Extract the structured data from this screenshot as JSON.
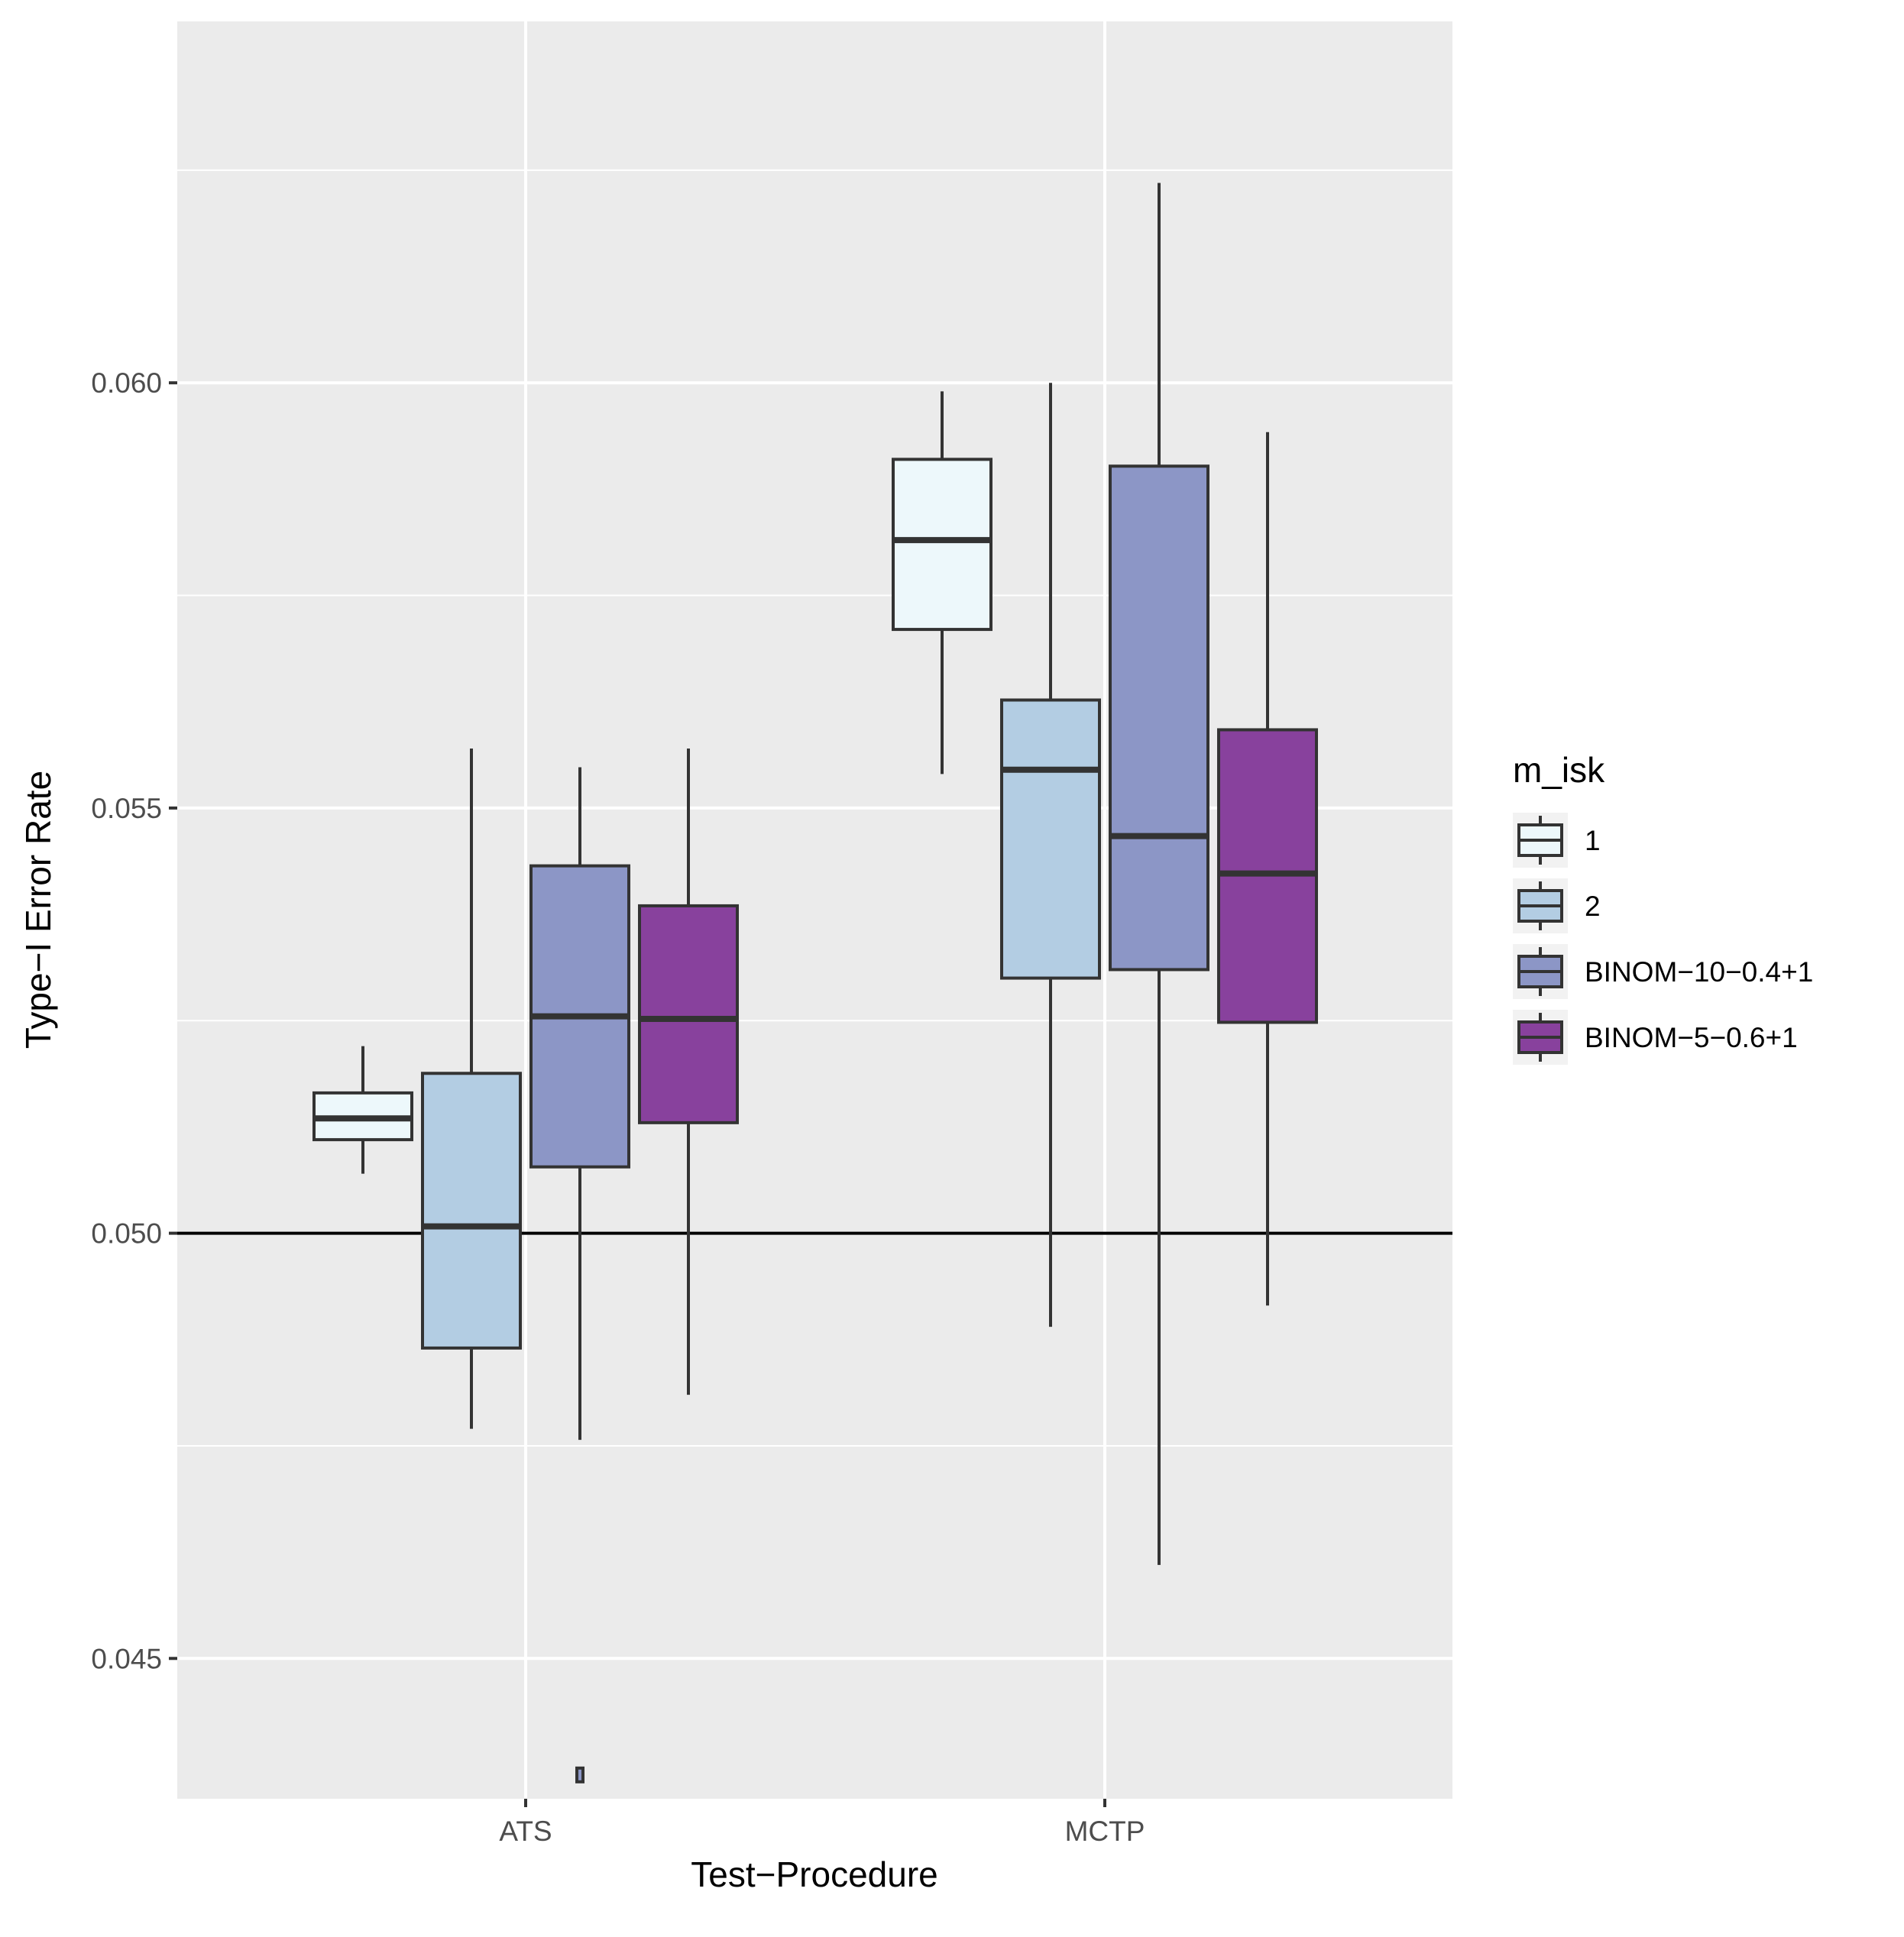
{
  "chart_data": {
    "type": "boxplot",
    "xlabel": "Test−Procedure",
    "ylabel": "Type−I Error Rate",
    "categories": [
      "ATS",
      "MCTP"
    ],
    "ylim": [
      0.04335,
      0.06425
    ],
    "yticks": [
      {
        "value": 0.045,
        "label": "0.045"
      },
      {
        "value": 0.05,
        "label": "0.050"
      },
      {
        "value": 0.055,
        "label": "0.055"
      },
      {
        "value": 0.06,
        "label": "0.060"
      }
    ],
    "reference_line": 0.05,
    "legend": {
      "title": "m_isk",
      "position": "right",
      "entries": [
        "1",
        "2",
        "BINOM−10−0.4+1",
        "BINOM−5−0.6+1"
      ]
    },
    "series": [
      {
        "name": "1",
        "color": "#edf8fb",
        "boxes": [
          {
            "category": "ATS",
            "whisker_low": 0.0507,
            "q1": 0.0511,
            "median": 0.05135,
            "q3": 0.05165,
            "whisker_high": 0.0522,
            "outliers": []
          },
          {
            "category": "MCTP",
            "whisker_low": 0.0554,
            "q1": 0.0571,
            "median": 0.05815,
            "q3": 0.0591,
            "whisker_high": 0.0599,
            "outliers": []
          }
        ]
      },
      {
        "name": "2",
        "color": "#b3cde3",
        "boxes": [
          {
            "category": "ATS",
            "whisker_low": 0.0477,
            "q1": 0.04865,
            "median": 0.05008,
            "q3": 0.05188,
            "whisker_high": 0.0557,
            "outliers": []
          },
          {
            "category": "MCTP",
            "whisker_low": 0.0489,
            "q1": 0.053,
            "median": 0.05545,
            "q3": 0.05627,
            "whisker_high": 0.06,
            "outliers": []
          }
        ]
      },
      {
        "name": "BINOM−10−0.4+1",
        "color": "#8c96c6",
        "boxes": [
          {
            "category": "ATS",
            "whisker_low": 0.04757,
            "q1": 0.05078,
            "median": 0.05255,
            "q3": 0.05432,
            "whisker_high": 0.05548,
            "outliers": [
              0.04363
            ]
          },
          {
            "category": "MCTP",
            "whisker_low": 0.0461,
            "q1": 0.0531,
            "median": 0.05467,
            "q3": 0.05902,
            "whisker_high": 0.06235,
            "outliers": []
          }
        ]
      },
      {
        "name": "BINOM−5−0.6+1",
        "color": "#88419d",
        "boxes": [
          {
            "category": "ATS",
            "whisker_low": 0.0481,
            "q1": 0.0513,
            "median": 0.05252,
            "q3": 0.05385,
            "whisker_high": 0.0557,
            "outliers": []
          },
          {
            "category": "MCTP",
            "whisker_low": 0.04915,
            "q1": 0.05248,
            "median": 0.05423,
            "q3": 0.05592,
            "whisker_high": 0.05942,
            "outliers": []
          }
        ]
      }
    ]
  }
}
